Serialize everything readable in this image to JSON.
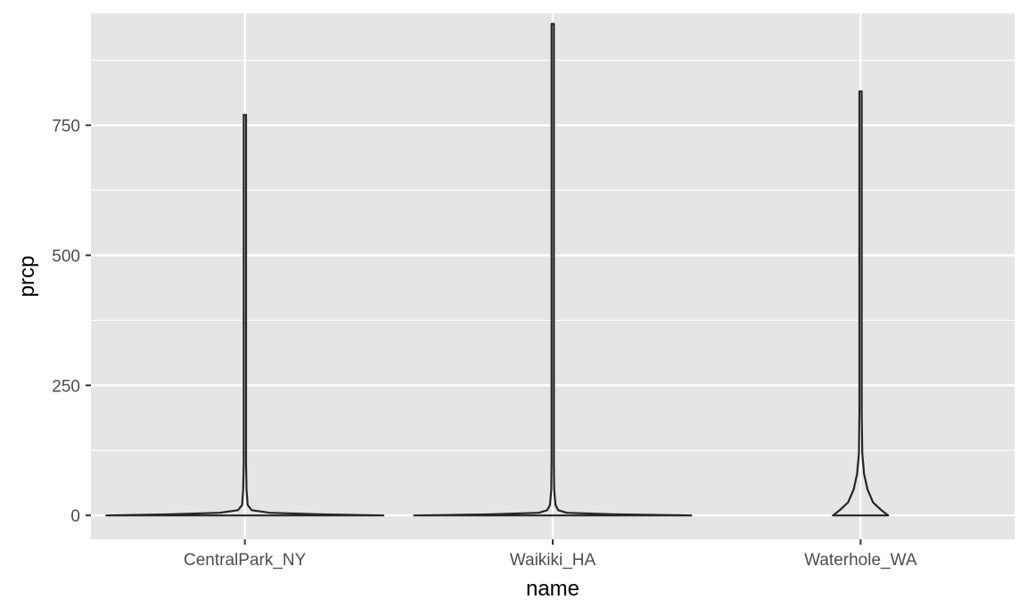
{
  "chart_data": {
    "type": "violin",
    "title": "",
    "xlabel": "name",
    "ylabel": "prcp",
    "categories": [
      "CentralPark_NY",
      "Waikiki_HA",
      "Waterhole_WA"
    ],
    "ylim": [
      -46,
      965
    ],
    "yticks": [
      0,
      250,
      500,
      750
    ],
    "grid": true,
    "legend": "none",
    "colors": {
      "panel": "#e5e5e5",
      "grid": "#ffffff",
      "outline": "#262626",
      "text": "#4d4d4d"
    },
    "violins": [
      {
        "name": "CentralPark_NY",
        "max": 770,
        "profile": [
          [
            0,
            1.0
          ],
          [
            2,
            0.55
          ],
          [
            5,
            0.18
          ],
          [
            10,
            0.05
          ],
          [
            20,
            0.02
          ],
          [
            50,
            0.012
          ],
          [
            100,
            0.008
          ],
          [
            200,
            0.006
          ],
          [
            400,
            0.005
          ],
          [
            770,
            0.003
          ]
        ]
      },
      {
        "name": "Waikiki_HA",
        "max": 945,
        "profile": [
          [
            0,
            1.0
          ],
          [
            2,
            0.45
          ],
          [
            5,
            0.1
          ],
          [
            10,
            0.04
          ],
          [
            20,
            0.02
          ],
          [
            50,
            0.01
          ],
          [
            100,
            0.006
          ],
          [
            200,
            0.004
          ],
          [
            400,
            0.003
          ],
          [
            945,
            0.002
          ]
        ]
      },
      {
        "name": "Waterhole_WA",
        "max": 815,
        "profile": [
          [
            0,
            0.2
          ],
          [
            10,
            0.15
          ],
          [
            25,
            0.09
          ],
          [
            50,
            0.05
          ],
          [
            80,
            0.025
          ],
          [
            120,
            0.012
          ],
          [
            200,
            0.007
          ],
          [
            400,
            0.005
          ],
          [
            815,
            0.004
          ]
        ]
      }
    ]
  }
}
